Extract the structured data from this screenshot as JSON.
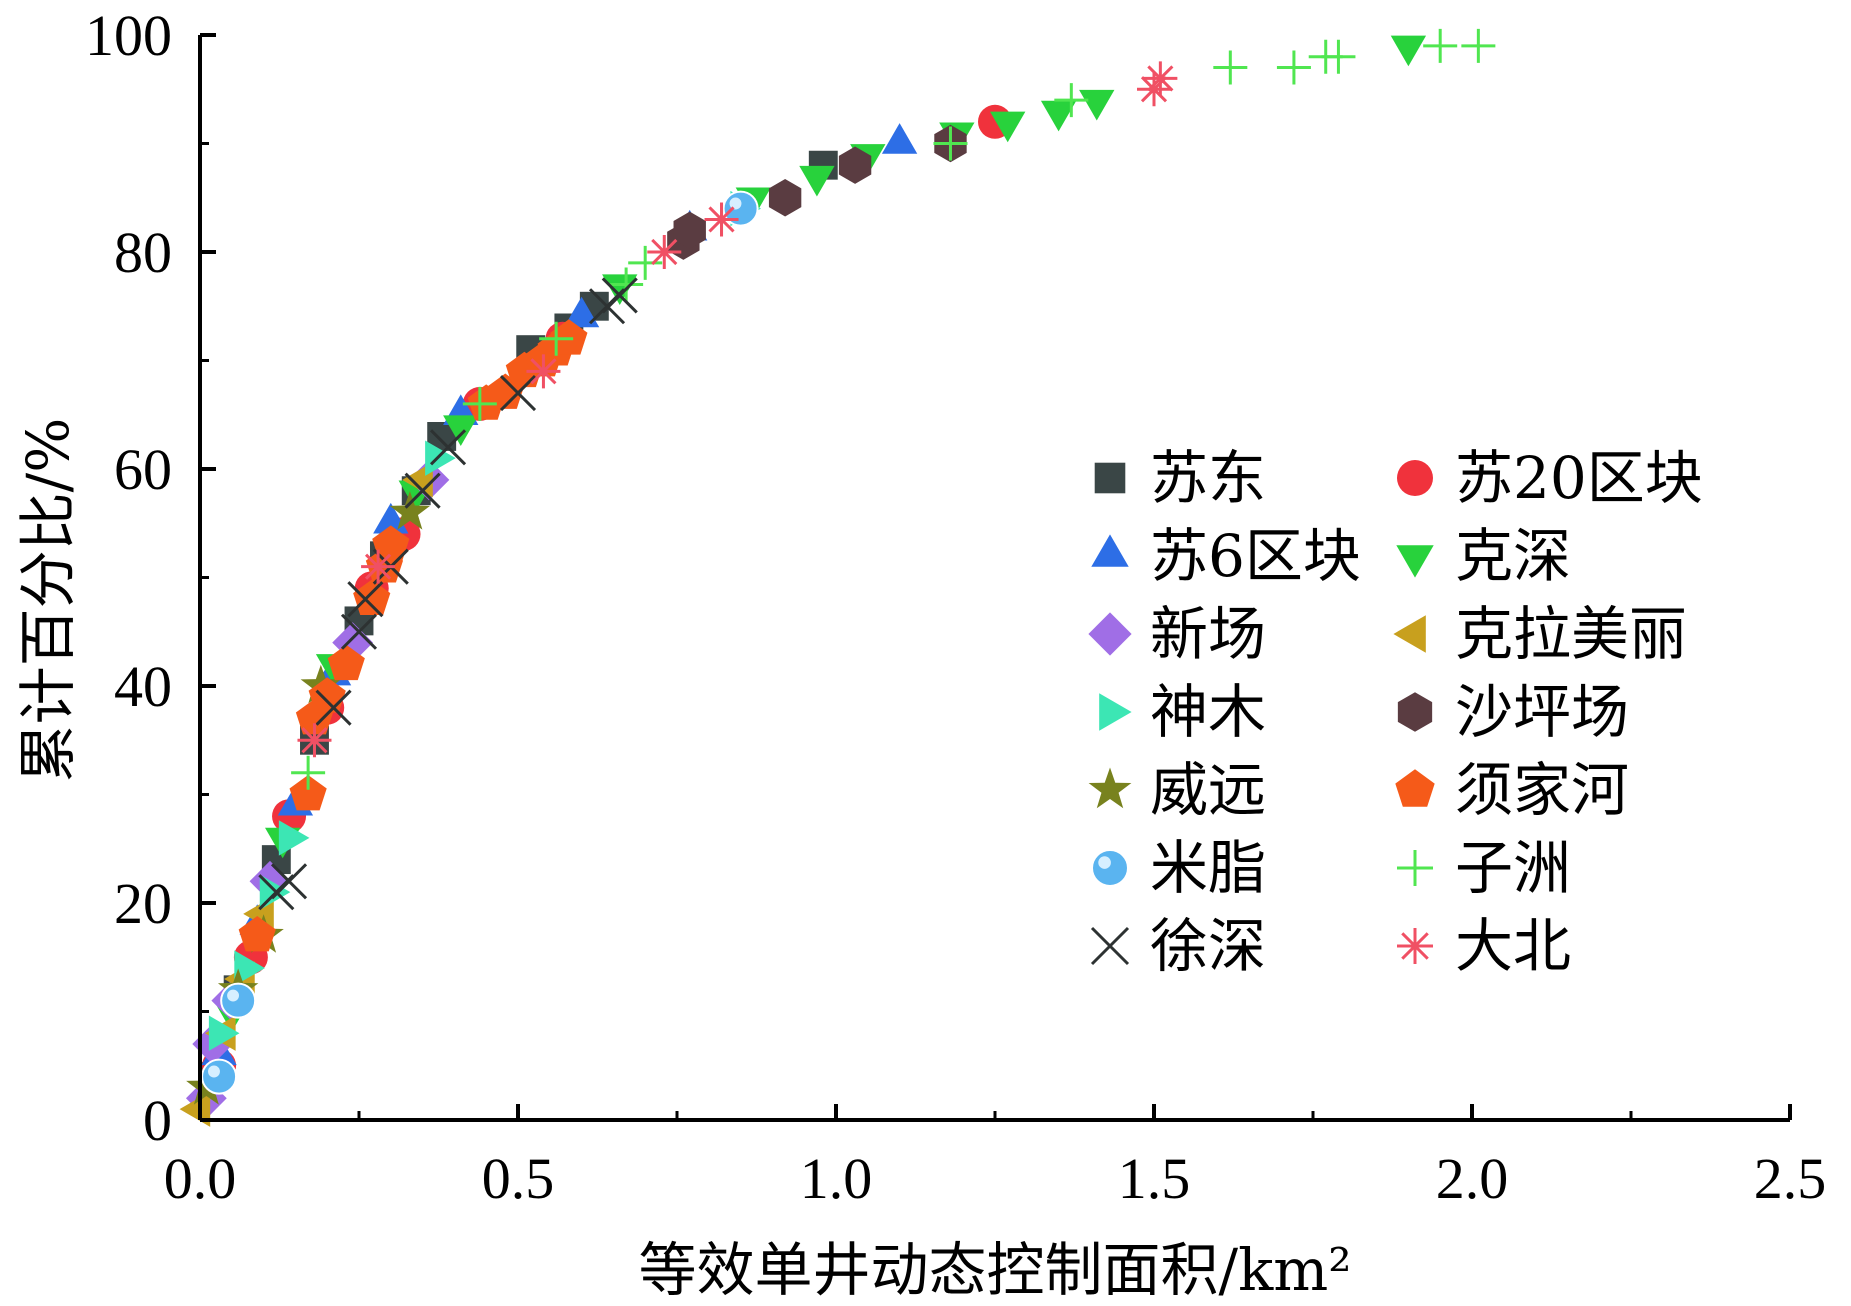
{
  "chart_data": {
    "type": "scatter",
    "xlabel": "等效单井动态控制面积/km²",
    "ylabel": "累计百分比/%",
    "xlim": [
      0,
      2.5
    ],
    "ylim": [
      0,
      100
    ],
    "x_ticks": [
      "0.0",
      "0.5",
      "1.0",
      "1.5",
      "2.0",
      "2.5"
    ],
    "y_ticks": [
      "0",
      "20",
      "40",
      "60",
      "80",
      "100"
    ],
    "legend_placement": "center-right",
    "series": [
      {
        "name": "苏东",
        "marker": "square",
        "color": "#3a4646",
        "points": [
          [
            0.02,
            4
          ],
          [
            0.06,
            12
          ],
          [
            0.12,
            24
          ],
          [
            0.18,
            35
          ],
          [
            0.25,
            46
          ],
          [
            0.29,
            52
          ],
          [
            0.34,
            58
          ],
          [
            0.38,
            63
          ],
          [
            0.52,
            71
          ],
          [
            0.58,
            73
          ],
          [
            0.62,
            75
          ],
          [
            0.98,
            88
          ]
        ]
      },
      {
        "name": "苏20区块",
        "marker": "circle",
        "color": "#f0323c",
        "points": [
          [
            0.03,
            5
          ],
          [
            0.08,
            15
          ],
          [
            0.14,
            28
          ],
          [
            0.2,
            38
          ],
          [
            0.27,
            49
          ],
          [
            0.32,
            54
          ],
          [
            0.44,
            66
          ],
          [
            0.57,
            72
          ],
          [
            1.25,
            92
          ]
        ]
      },
      {
        "name": "苏6区块",
        "marker": "triangle-up",
        "color": "#2d6ee6",
        "points": [
          [
            0.03,
            6
          ],
          [
            0.09,
            18
          ],
          [
            0.15,
            29
          ],
          [
            0.21,
            41
          ],
          [
            0.3,
            55
          ],
          [
            0.41,
            65
          ],
          [
            0.6,
            74
          ],
          [
            0.77,
            82
          ],
          [
            1.1,
            90
          ]
        ]
      },
      {
        "name": "克深",
        "marker": "triangle-down",
        "color": "#28d23c",
        "points": [
          [
            0.05,
            10
          ],
          [
            0.13,
            26
          ],
          [
            0.21,
            42
          ],
          [
            0.34,
            58
          ],
          [
            0.41,
            64
          ],
          [
            0.66,
            77
          ],
          [
            0.87,
            85
          ],
          [
            0.97,
            87
          ],
          [
            1.05,
            89
          ],
          [
            1.19,
            91
          ],
          [
            1.27,
            92
          ],
          [
            1.35,
            93
          ],
          [
            1.41,
            94
          ],
          [
            1.9,
            99
          ]
        ]
      },
      {
        "name": "新场",
        "marker": "diamond",
        "color": "#a06ee6",
        "points": [
          [
            0.01,
            2
          ],
          [
            0.02,
            7
          ],
          [
            0.05,
            11
          ],
          [
            0.11,
            22
          ],
          [
            0.24,
            44
          ],
          [
            0.36,
            59
          ]
        ]
      },
      {
        "name": "克拉美丽",
        "marker": "triangle-left",
        "color": "#c8a01e",
        "points": [
          [
            0.0,
            1
          ],
          [
            0.04,
            8
          ],
          [
            0.07,
            13
          ],
          [
            0.1,
            19
          ],
          [
            0.35,
            59
          ]
        ]
      },
      {
        "name": "神木",
        "marker": "triangle-right",
        "color": "#3ce6b4",
        "points": [
          [
            0.03,
            8
          ],
          [
            0.07,
            14
          ],
          [
            0.11,
            21
          ],
          [
            0.14,
            26
          ],
          [
            0.37,
            61
          ],
          [
            0.85,
            84
          ]
        ]
      },
      {
        "name": "沙坪场",
        "marker": "hexagon",
        "color": "#5a3c41",
        "points": [
          [
            0.76,
            81
          ],
          [
            0.77,
            82
          ],
          [
            0.92,
            85
          ],
          [
            1.03,
            88
          ],
          [
            1.18,
            90
          ]
        ]
      },
      {
        "name": "威远",
        "marker": "star",
        "color": "#78821e",
        "points": [
          [
            0.01,
            3
          ],
          [
            0.06,
            12
          ],
          [
            0.1,
            17
          ],
          [
            0.19,
            40
          ],
          [
            0.33,
            56
          ]
        ]
      },
      {
        "name": "须家河",
        "marker": "pentagon",
        "color": "#f55a19",
        "points": [
          [
            0.09,
            17
          ],
          [
            0.17,
            30
          ],
          [
            0.18,
            37
          ],
          [
            0.2,
            39
          ],
          [
            0.23,
            42
          ],
          [
            0.27,
            48
          ],
          [
            0.29,
            51
          ],
          [
            0.3,
            53
          ],
          [
            0.45,
            66
          ],
          [
            0.48,
            67
          ],
          [
            0.51,
            69
          ],
          [
            0.54,
            70
          ],
          [
            0.56,
            71
          ],
          [
            0.58,
            72
          ]
        ]
      },
      {
        "name": "米脂",
        "marker": "sphere",
        "color": "#5ab4f0",
        "points": [
          [
            0.03,
            4
          ],
          [
            0.06,
            11
          ],
          [
            0.85,
            84
          ]
        ]
      },
      {
        "name": "子洲",
        "marker": "plus",
        "color": "#50e650",
        "points": [
          [
            0.17,
            32
          ],
          [
            0.44,
            66
          ],
          [
            0.56,
            72
          ],
          [
            0.67,
            77
          ],
          [
            0.7,
            79
          ],
          [
            0.82,
            83
          ],
          [
            1.18,
            90
          ],
          [
            1.37,
            94
          ],
          [
            1.62,
            97
          ],
          [
            1.72,
            97
          ],
          [
            1.77,
            98
          ],
          [
            1.79,
            98
          ],
          [
            1.95,
            99
          ],
          [
            2.01,
            99
          ]
        ]
      },
      {
        "name": "徐深",
        "marker": "x",
        "color": "#2d3232",
        "points": [
          [
            0.12,
            21
          ],
          [
            0.14,
            22
          ],
          [
            0.21,
            38
          ],
          [
            0.25,
            45
          ],
          [
            0.26,
            48
          ],
          [
            0.3,
            51
          ],
          [
            0.35,
            58
          ],
          [
            0.39,
            62
          ],
          [
            0.5,
            67
          ],
          [
            0.64,
            75
          ],
          [
            0.66,
            76
          ]
        ]
      },
      {
        "name": "大北",
        "marker": "asterisk",
        "color": "#f05064",
        "points": [
          [
            0.18,
            35
          ],
          [
            0.28,
            51
          ],
          [
            0.54,
            69
          ],
          [
            0.73,
            80
          ],
          [
            0.82,
            83
          ],
          [
            1.5,
            95
          ],
          [
            1.51,
            96
          ]
        ]
      }
    ]
  }
}
